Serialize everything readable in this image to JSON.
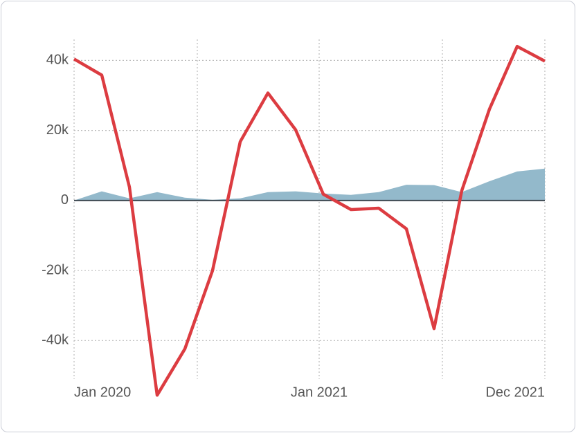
{
  "chart_data": {
    "type": "line",
    "x": [
      0,
      1,
      2,
      3,
      4,
      5,
      6,
      7,
      8,
      9,
      10,
      11,
      12,
      13,
      14,
      15,
      16,
      17
    ],
    "xlim": [
      0,
      17
    ],
    "xticks": [
      {
        "value": 0,
        "label": "Jan 2020"
      },
      {
        "value": 8.85,
        "label": "Jan 2021"
      },
      {
        "value": 17,
        "label": "Dec 2021"
      }
    ],
    "xgrid": [
      0,
      4.45,
      8.85,
      13.3,
      17
    ],
    "ylim": [
      -51000,
      46000
    ],
    "yticks": [
      {
        "value": -40000,
        "label": "-40k"
      },
      {
        "value": -20000,
        "label": "-20k"
      },
      0,
      {
        "value": 20000,
        "label": "20k"
      },
      {
        "value": 40000,
        "label": "40k"
      }
    ],
    "grid": true,
    "series": [
      {
        "kind": "area",
        "color": "#93b9cb",
        "values": [
          0,
          2600,
          600,
          2400,
          800,
          200,
          600,
          2400,
          2600,
          2000,
          1600,
          2400,
          4500,
          4400,
          2400,
          5500,
          8300,
          9100
        ]
      },
      {
        "kind": "line",
        "color": "#dc3c41",
        "values": [
          40400,
          35800,
          3800,
          -55600,
          -42400,
          -20000,
          16800,
          30700,
          20200,
          1800,
          -2600,
          -2200,
          -8100,
          -36600,
          2800,
          26100,
          44000,
          39800
        ]
      }
    ]
  }
}
